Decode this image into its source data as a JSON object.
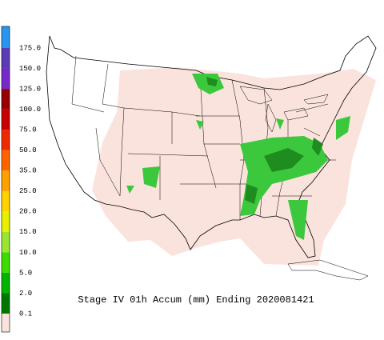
{
  "legend": {
    "base_color": "#fbe3dd",
    "items": [
      {
        "label": "0.1",
        "color": "#007800"
      },
      {
        "label": "2.0",
        "color": "#00b400"
      },
      {
        "label": "5.0",
        "color": "#3cdc00"
      },
      {
        "label": "10.0",
        "color": "#9be632"
      },
      {
        "label": "15.0",
        "color": "#e6f000"
      },
      {
        "label": "20.0",
        "color": "#ffd200"
      },
      {
        "label": "25.0",
        "color": "#ffa000"
      },
      {
        "label": "35.0",
        "color": "#ff6400"
      },
      {
        "label": "50.0",
        "color": "#f02800"
      },
      {
        "label": "75.0",
        "color": "#c80000"
      },
      {
        "label": "100.0",
        "color": "#960000"
      },
      {
        "label": "125.0",
        "color": "#7828c8"
      },
      {
        "label": "150.0",
        "color": "#5a3cb4"
      },
      {
        "label": "175.0",
        "color": "#2896f0"
      }
    ]
  },
  "caption": "Stage IV 01h Accum (mm) Ending 2020081421"
}
